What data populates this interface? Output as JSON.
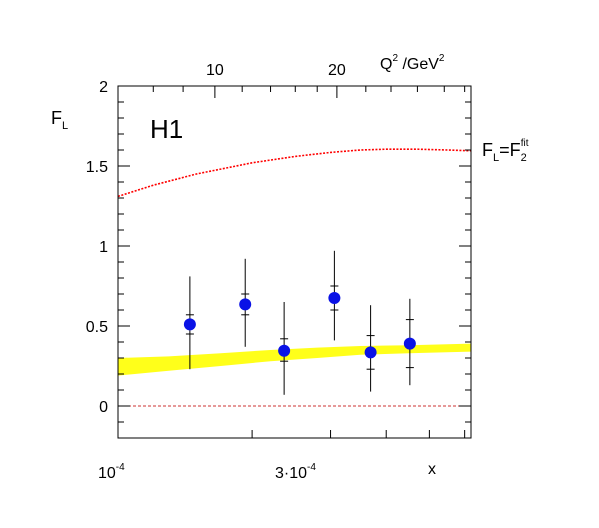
{
  "chart_data": {
    "type": "scatter",
    "panel_label": "H1",
    "x_axis": {
      "label": "x",
      "scale": "log",
      "range": [
        0.0001,
        0.00062
      ],
      "tick_labels": [
        {
          "text_base": "10",
          "text_exp": "-4",
          "value": 0.0001
        },
        {
          "text": "3·10",
          "text_exp": "-4",
          "value": 0.0003
        }
      ]
    },
    "top_axis": {
      "label_main": "Q",
      "label_exp": "2",
      "label_unit": " /GeV",
      "label_unit_exp": "2",
      "tick_labels": [
        {
          "text": "10",
          "x_value": 0.000165
        },
        {
          "text": "20",
          "x_value": 0.00031
        }
      ]
    },
    "y_axis": {
      "label_main": "F",
      "label_sub": "L",
      "range": [
        -0.2,
        2.0
      ],
      "tick_labels": [
        "0",
        "0.5",
        "1",
        "1.5",
        "2"
      ],
      "tick_values": [
        0,
        0.5,
        1,
        1.5,
        2
      ]
    },
    "points": [
      {
        "x": 0.000145,
        "y": 0.51,
        "stat_lo": 0.45,
        "stat_hi": 0.57,
        "tot_lo": 0.23,
        "tot_hi": 0.81
      },
      {
        "x": 0.000193,
        "y": 0.635,
        "stat_lo": 0.57,
        "stat_hi": 0.7,
        "tot_lo": 0.37,
        "tot_hi": 0.92
      },
      {
        "x": 0.000236,
        "y": 0.345,
        "stat_lo": 0.28,
        "stat_hi": 0.42,
        "tot_lo": 0.07,
        "tot_hi": 0.65
      },
      {
        "x": 0.000306,
        "y": 0.675,
        "stat_lo": 0.6,
        "stat_hi": 0.75,
        "tot_lo": 0.41,
        "tot_hi": 0.97
      },
      {
        "x": 0.000369,
        "y": 0.335,
        "stat_lo": 0.23,
        "stat_hi": 0.44,
        "tot_lo": 0.09,
        "tot_hi": 0.63
      },
      {
        "x": 0.000452,
        "y": 0.39,
        "stat_lo": 0.24,
        "stat_hi": 0.54,
        "tot_lo": 0.13,
        "tot_hi": 0.67
      }
    ],
    "band": {
      "x": [
        0.0001,
        0.00013,
        0.00017,
        0.00022,
        0.00028,
        0.00035,
        0.00045,
        0.00062
      ],
      "lower": [
        0.19,
        0.22,
        0.25,
        0.28,
        0.3,
        0.32,
        0.33,
        0.34
      ],
      "upper": [
        0.3,
        0.31,
        0.33,
        0.35,
        0.365,
        0.375,
        0.38,
        0.39
      ]
    },
    "fit_curve": {
      "label_main": "F",
      "label_sub": "L",
      "label_eq": "=F",
      "label_sub2": "2",
      "label_sup2": "fit",
      "x": [
        0.0001,
        0.00012,
        0.00015,
        0.0002,
        0.00025,
        0.0003,
        0.00035,
        0.0004,
        0.00047,
        0.00055,
        0.00062
      ],
      "y": [
        1.31,
        1.38,
        1.45,
        1.52,
        1.56,
        1.585,
        1.6,
        1.605,
        1.605,
        1.6,
        1.595
      ]
    },
    "zero_line": 0,
    "colors": {
      "points": "#0a12e6",
      "band": "#ffff1a",
      "fit_curve": "#ff0000",
      "zero_line": "#cc3333",
      "axes": "#000000"
    }
  }
}
